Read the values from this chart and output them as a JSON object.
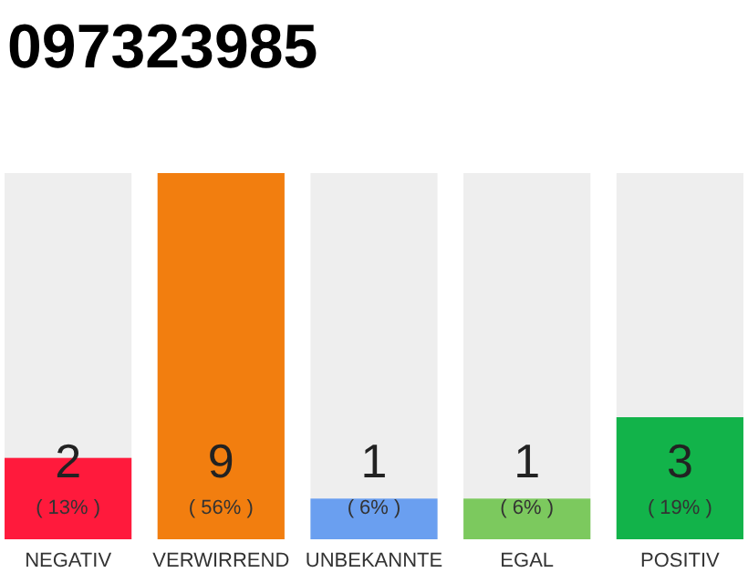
{
  "chart_data": {
    "type": "bar",
    "title": "097323985",
    "categories": [
      "NEGATIV",
      "VERWIRREND",
      "UNBEKANNTE",
      "EGAL",
      "POSITIV"
    ],
    "values": [
      2,
      9,
      1,
      1,
      3
    ],
    "colors": [
      "#ff1a3c",
      "#f27e0f",
      "#6a9ff0",
      "#7cc95e",
      "#12b34a"
    ],
    "ylim": [
      0,
      9
    ],
    "tick_labels": "x",
    "data_labels": true,
    "annotations": [
      "( 13% )",
      "( 56% )",
      "( 6% )",
      "( 6% )",
      "( 19% )"
    ]
  }
}
